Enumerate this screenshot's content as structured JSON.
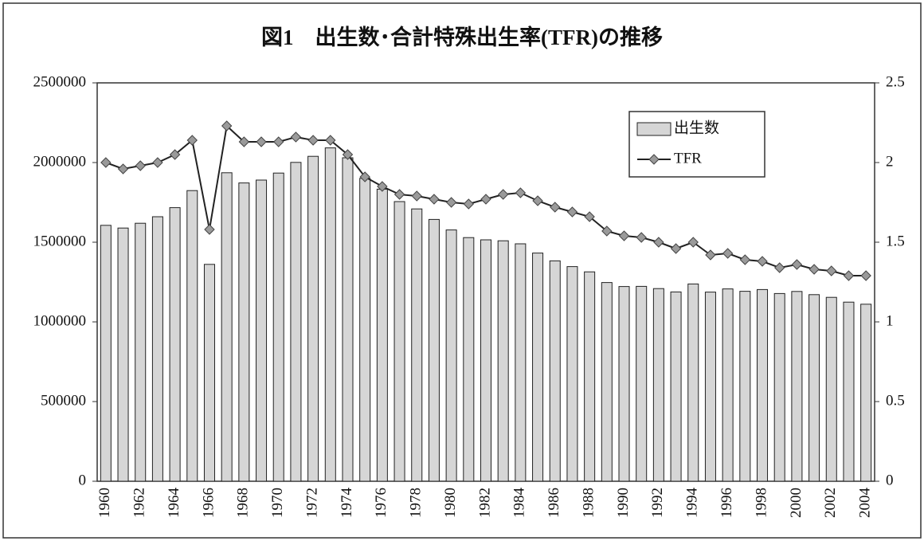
{
  "chart_data": {
    "type": "bar_line",
    "title": "図1　出生数･合計特殊出生率(TFR)の推移",
    "categories": [
      "1960",
      null,
      "1962",
      null,
      "1964",
      null,
      "1966",
      null,
      "1968",
      null,
      "1970",
      null,
      "1972",
      null,
      "1974",
      null,
      "1976",
      null,
      "1978",
      null,
      "1980",
      null,
      "1982",
      null,
      "1984",
      null,
      "1986",
      null,
      "1988",
      null,
      "1990",
      null,
      "1992",
      null,
      "1994",
      null,
      "1996",
      null,
      "1998",
      null,
      "2000",
      null,
      "2002",
      null,
      "2004"
    ],
    "series": [
      {
        "name": "出生数",
        "type": "bar",
        "color": "#d6d6d6",
        "values": [
          1606000,
          1589000,
          1619000,
          1660000,
          1717000,
          1824000,
          1361000,
          1936000,
          1872000,
          1890000,
          1934000,
          2001000,
          2039000,
          2092000,
          2030000,
          1901000,
          1833000,
          1755000,
          1709000,
          1643000,
          1577000,
          1529000,
          1515000,
          1509000,
          1490000,
          1432000,
          1383000,
          1347000,
          1314000,
          1247000,
          1222000,
          1223000,
          1209000,
          1188000,
          1238000,
          1187000,
          1207000,
          1192000,
          1203000,
          1178000,
          1191000,
          1171000,
          1154000,
          1124000,
          1111000
        ]
      },
      {
        "name": "TFR",
        "type": "line",
        "axis": "y2",
        "color": "#222222",
        "marker_color": "#9a9a9a",
        "values": [
          2.0,
          1.96,
          1.98,
          2.0,
          2.05,
          2.14,
          1.58,
          2.23,
          2.13,
          2.13,
          2.13,
          2.16,
          2.14,
          2.14,
          2.05,
          1.91,
          1.85,
          1.8,
          1.79,
          1.77,
          1.75,
          1.74,
          1.77,
          1.8,
          1.81,
          1.76,
          1.72,
          1.69,
          1.66,
          1.57,
          1.54,
          1.53,
          1.5,
          1.46,
          1.5,
          1.42,
          1.43,
          1.39,
          1.38,
          1.34,
          1.36,
          1.33,
          1.32,
          1.29,
          1.29
        ]
      }
    ],
    "ylim": [
      0,
      2500000
    ],
    "yticks": [
      0,
      500000,
      1000000,
      1500000,
      2000000,
      2500000
    ],
    "y2lim": [
      0,
      2.5
    ],
    "y2ticks": [
      0,
      0.5,
      1,
      1.5,
      2,
      2.5
    ],
    "grid": false,
    "legend": "upper right"
  }
}
